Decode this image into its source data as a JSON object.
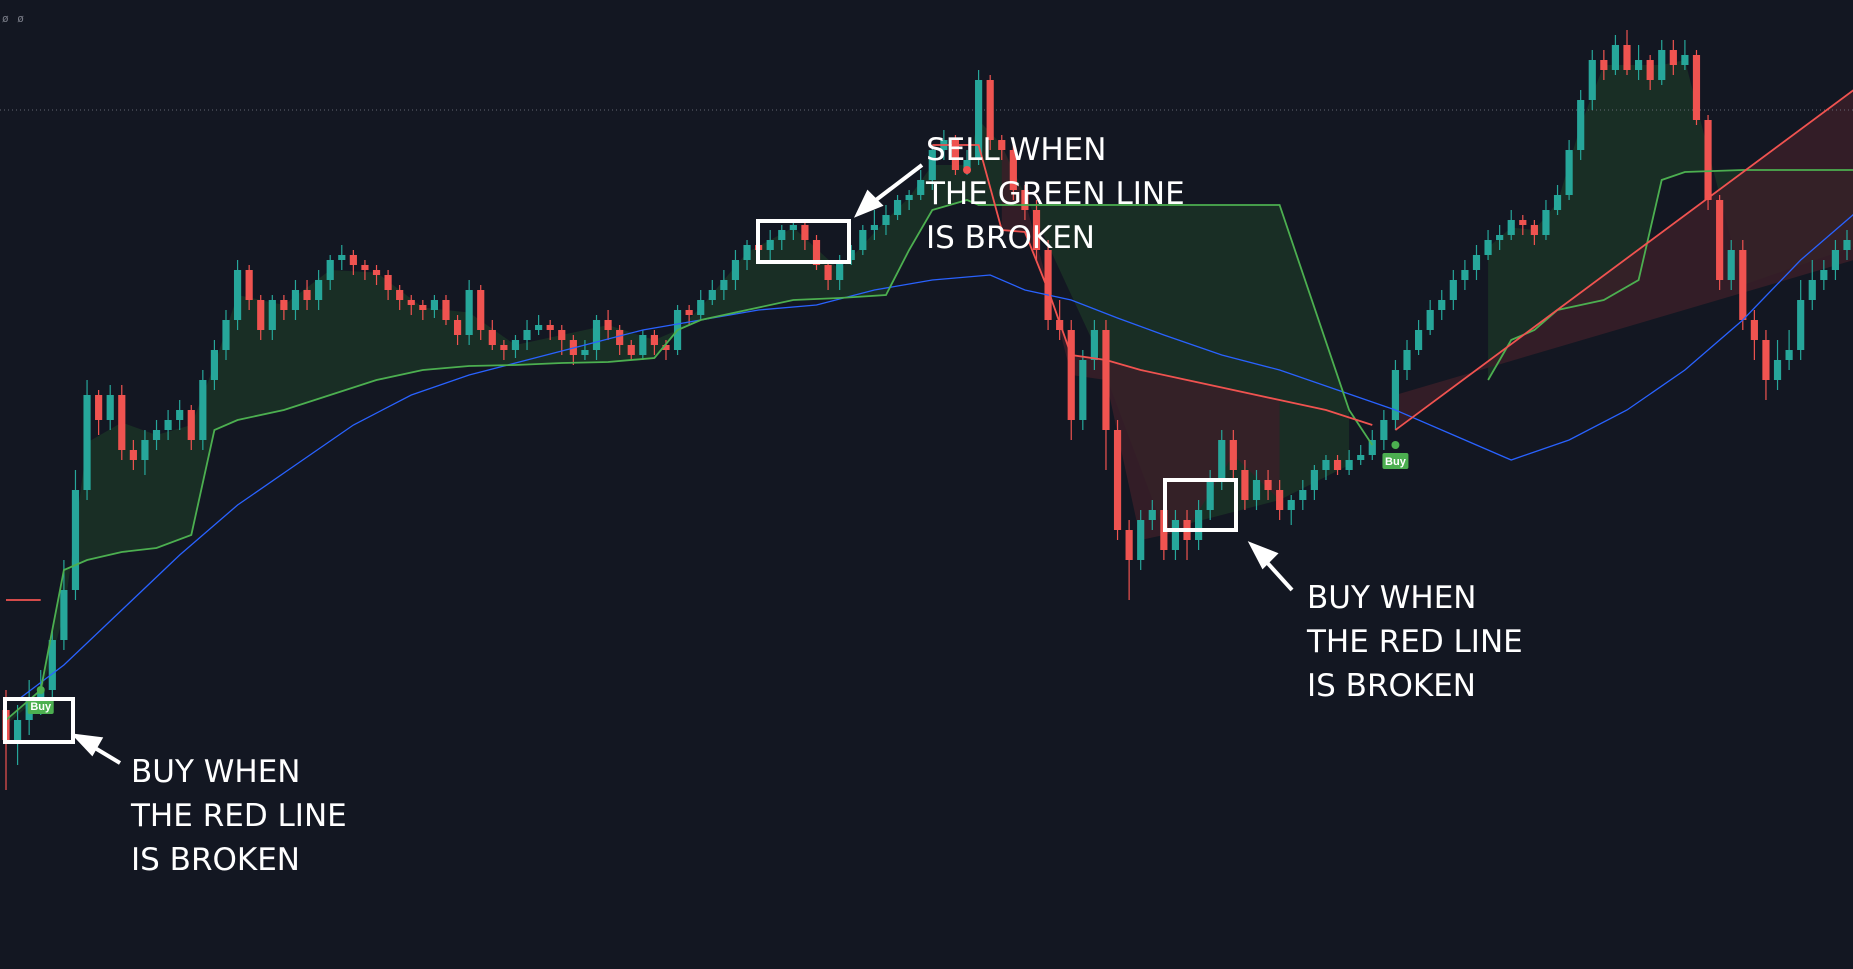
{
  "legend": {
    "values": "ø ø"
  },
  "colors": {
    "background": "#131722",
    "bull": "#26a69a",
    "bear": "#ef5350",
    "support_line": "#4caf50",
    "resistance_line": "#f05350",
    "moving_average": "#2962ff",
    "support_fill": "#1b3326",
    "resistance_fill": "#3a1f28",
    "annotation": "#ffffff",
    "signal_badge": "#4caf50"
  },
  "annotations": [
    {
      "id": "buy-left",
      "lines": [
        "BUY WHEN",
        "THE RED LINE",
        "IS BROKEN"
      ]
    },
    {
      "id": "sell-top",
      "lines": [
        "SELL WHEN",
        "THE GREEN LINE",
        "IS BROKEN"
      ]
    },
    {
      "id": "buy-right",
      "lines": [
        "BUY WHEN",
        "THE RED LINE",
        "IS BROKEN"
      ]
    }
  ],
  "signals": [
    {
      "label": "Buy",
      "bar": 3
    },
    {
      "label": "Buy",
      "bar": 120
    }
  ],
  "chart_data": {
    "type": "candlestick",
    "title": "",
    "grid": false,
    "ylim": [
      0,
      969
    ],
    "candles": [
      [
        710,
        740,
        790,
        690
      ],
      [
        740,
        720,
        765,
        705
      ],
      [
        720,
        700,
        735,
        680
      ],
      [
        700,
        690,
        715,
        670
      ],
      [
        690,
        640,
        700,
        630
      ],
      [
        640,
        590,
        650,
        560
      ],
      [
        590,
        490,
        600,
        470
      ],
      [
        490,
        395,
        500,
        380
      ],
      [
        395,
        420,
        435,
        390
      ],
      [
        420,
        395,
        430,
        385
      ],
      [
        395,
        450,
        460,
        385
      ],
      [
        450,
        460,
        470,
        440
      ],
      [
        460,
        440,
        475,
        430
      ],
      [
        440,
        430,
        450,
        420
      ],
      [
        430,
        420,
        440,
        410
      ],
      [
        420,
        410,
        430,
        400
      ],
      [
        410,
        440,
        450,
        405
      ],
      [
        440,
        380,
        450,
        370
      ],
      [
        380,
        350,
        390,
        340
      ],
      [
        350,
        320,
        360,
        310
      ],
      [
        320,
        270,
        330,
        260
      ],
      [
        270,
        300,
        310,
        265
      ],
      [
        300,
        330,
        340,
        295
      ],
      [
        330,
        300,
        340,
        295
      ],
      [
        300,
        310,
        320,
        295
      ],
      [
        310,
        290,
        320,
        280
      ],
      [
        290,
        300,
        310,
        280
      ],
      [
        300,
        280,
        310,
        270
      ],
      [
        280,
        260,
        290,
        255
      ],
      [
        260,
        255,
        270,
        245
      ],
      [
        255,
        265,
        275,
        250
      ],
      [
        265,
        270,
        280,
        260
      ],
      [
        270,
        275,
        285,
        265
      ],
      [
        275,
        290,
        300,
        270
      ],
      [
        290,
        300,
        310,
        285
      ],
      [
        300,
        305,
        315,
        295
      ],
      [
        305,
        310,
        320,
        300
      ],
      [
        310,
        300,
        318,
        295
      ],
      [
        300,
        320,
        325,
        295
      ],
      [
        320,
        335,
        345,
        315
      ],
      [
        335,
        290,
        345,
        280
      ],
      [
        290,
        330,
        340,
        285
      ],
      [
        330,
        345,
        350,
        320
      ],
      [
        345,
        350,
        360,
        340
      ],
      [
        350,
        340,
        358,
        335
      ],
      [
        340,
        330,
        350,
        320
      ],
      [
        330,
        325,
        335,
        315
      ],
      [
        325,
        330,
        340,
        320
      ],
      [
        330,
        340,
        355,
        325
      ],
      [
        340,
        355,
        365,
        335
      ],
      [
        355,
        350,
        360,
        340
      ],
      [
        350,
        320,
        360,
        315
      ],
      [
        320,
        330,
        340,
        310
      ],
      [
        330,
        345,
        355,
        325
      ],
      [
        345,
        355,
        360,
        340
      ],
      [
        355,
        335,
        360,
        330
      ],
      [
        335,
        345,
        355,
        330
      ],
      [
        345,
        350,
        360,
        340
      ],
      [
        350,
        310,
        355,
        305
      ],
      [
        310,
        315,
        325,
        305
      ],
      [
        315,
        300,
        320,
        290
      ],
      [
        300,
        290,
        305,
        280
      ],
      [
        290,
        280,
        300,
        270
      ],
      [
        280,
        260,
        290,
        250
      ],
      [
        260,
        245,
        270,
        240
      ],
      [
        245,
        250,
        255,
        235
      ],
      [
        250,
        240,
        260,
        230
      ],
      [
        240,
        230,
        250,
        225
      ],
      [
        230,
        225,
        240,
        220
      ],
      [
        225,
        240,
        250,
        220
      ],
      [
        240,
        265,
        270,
        235
      ],
      [
        265,
        280,
        290,
        260
      ],
      [
        280,
        260,
        290,
        255
      ],
      [
        260,
        250,
        265,
        245
      ],
      [
        250,
        230,
        255,
        225
      ],
      [
        230,
        225,
        240,
        210
      ],
      [
        225,
        215,
        235,
        205
      ],
      [
        215,
        200,
        220,
        195
      ],
      [
        200,
        195,
        210,
        190
      ],
      [
        195,
        180,
        200,
        170
      ],
      [
        180,
        150,
        190,
        145
      ],
      [
        150,
        140,
        160,
        130
      ],
      [
        140,
        170,
        175,
        135
      ],
      [
        170,
        160,
        175,
        150
      ],
      [
        160,
        80,
        165,
        70
      ],
      [
        80,
        140,
        150,
        75
      ],
      [
        140,
        150,
        160,
        135
      ],
      [
        150,
        190,
        200,
        145
      ],
      [
        190,
        210,
        220,
        185
      ],
      [
        210,
        250,
        260,
        200
      ],
      [
        250,
        320,
        330,
        240
      ],
      [
        320,
        330,
        340,
        300
      ],
      [
        330,
        420,
        440,
        320
      ],
      [
        420,
        360,
        430,
        350
      ],
      [
        360,
        330,
        370,
        320
      ],
      [
        330,
        430,
        470,
        320
      ],
      [
        430,
        530,
        540,
        420
      ],
      [
        530,
        560,
        600,
        520
      ],
      [
        560,
        520,
        570,
        510
      ],
      [
        520,
        510,
        530,
        500
      ],
      [
        510,
        550,
        560,
        500
      ],
      [
        550,
        520,
        560,
        510
      ],
      [
        520,
        540,
        560,
        510
      ],
      [
        540,
        510,
        550,
        500
      ],
      [
        510,
        480,
        520,
        470
      ],
      [
        480,
        440,
        490,
        430
      ],
      [
        440,
        470,
        480,
        430
      ],
      [
        470,
        500,
        510,
        460
      ],
      [
        500,
        480,
        510,
        470
      ],
      [
        480,
        490,
        500,
        470
      ],
      [
        490,
        510,
        520,
        480
      ],
      [
        510,
        500,
        525,
        495
      ],
      [
        500,
        490,
        510,
        480
      ],
      [
        490,
        470,
        500,
        465
      ],
      [
        470,
        460,
        480,
        455
      ],
      [
        460,
        470,
        475,
        455
      ],
      [
        470,
        460,
        475,
        450
      ],
      [
        460,
        455,
        465,
        445
      ],
      [
        455,
        440,
        460,
        430
      ],
      [
        440,
        420,
        450,
        410
      ],
      [
        420,
        370,
        430,
        360
      ],
      [
        370,
        350,
        380,
        340
      ],
      [
        350,
        330,
        355,
        320
      ],
      [
        330,
        310,
        335,
        300
      ],
      [
        310,
        300,
        320,
        290
      ],
      [
        300,
        280,
        310,
        270
      ],
      [
        280,
        270,
        290,
        260
      ],
      [
        270,
        255,
        280,
        245
      ],
      [
        255,
        240,
        260,
        230
      ],
      [
        240,
        235,
        250,
        225
      ],
      [
        235,
        220,
        240,
        210
      ],
      [
        220,
        225,
        235,
        215
      ],
      [
        225,
        235,
        245,
        220
      ],
      [
        235,
        210,
        240,
        200
      ],
      [
        210,
        195,
        215,
        185
      ],
      [
        195,
        150,
        200,
        140
      ],
      [
        150,
        100,
        160,
        90
      ],
      [
        100,
        60,
        110,
        50
      ],
      [
        60,
        70,
        80,
        50
      ],
      [
        70,
        45,
        75,
        35
      ],
      [
        45,
        70,
        75,
        30
      ],
      [
        70,
        60,
        80,
        45
      ],
      [
        60,
        80,
        90,
        55
      ],
      [
        80,
        50,
        85,
        40
      ],
      [
        50,
        65,
        75,
        40
      ],
      [
        65,
        55,
        70,
        40
      ],
      [
        55,
        120,
        125,
        50
      ],
      [
        120,
        200,
        210,
        115
      ],
      [
        200,
        280,
        290,
        195
      ],
      [
        280,
        250,
        290,
        240
      ],
      [
        250,
        320,
        330,
        240
      ],
      [
        320,
        340,
        360,
        310
      ],
      [
        340,
        380,
        400,
        330
      ],
      [
        380,
        360,
        390,
        340
      ],
      [
        360,
        350,
        370,
        330
      ],
      [
        350,
        300,
        360,
        280
      ],
      [
        300,
        280,
        310,
        260
      ],
      [
        280,
        270,
        290,
        260
      ],
      [
        270,
        250,
        280,
        240
      ],
      [
        250,
        240,
        260,
        230
      ]
    ],
    "support_line": [
      [
        0,
        720
      ],
      [
        3,
        690
      ],
      [
        5,
        570
      ],
      [
        7,
        560
      ],
      [
        10,
        552
      ],
      [
        13,
        548
      ],
      [
        16,
        535
      ],
      [
        18,
        430
      ],
      [
        20,
        420
      ],
      [
        24,
        410
      ],
      [
        28,
        395
      ],
      [
        32,
        380
      ],
      [
        36,
        370
      ],
      [
        40,
        366
      ],
      [
        44,
        365
      ],
      [
        48,
        363
      ],
      [
        52,
        362
      ],
      [
        56,
        358
      ],
      [
        58,
        330
      ],
      [
        60,
        320
      ],
      [
        64,
        310
      ],
      [
        68,
        300
      ],
      [
        72,
        298
      ],
      [
        76,
        295
      ],
      [
        78,
        250
      ],
      [
        80,
        210
      ],
      [
        83,
        200
      ],
      [
        84,
        205
      ],
      [
        86,
        205
      ],
      [
        94,
        205
      ],
      [
        100,
        205
      ],
      [
        110,
        205
      ],
      [
        116,
        410
      ],
      [
        118,
        445
      ],
      [
        122,
        440
      ],
      [
        124,
        410
      ],
      [
        126,
        395
      ],
      [
        128,
        380
      ],
      [
        130,
        340
      ],
      [
        132,
        330
      ],
      [
        134,
        310
      ],
      [
        136,
        305
      ],
      [
        138,
        300
      ],
      [
        141,
        280
      ],
      [
        143,
        180
      ],
      [
        145,
        172
      ],
      [
        150,
        170
      ],
      [
        160,
        170
      ],
      [
        163,
        162
      ],
      [
        164,
        162
      ]
    ],
    "resistance_line": [
      [
        0,
        600
      ],
      [
        3,
        600
      ],
      [
        80,
        145
      ],
      [
        84,
        145
      ],
      [
        86,
        230
      ],
      [
        88,
        232
      ],
      [
        90,
        290
      ],
      [
        92,
        355
      ],
      [
        95,
        360
      ],
      [
        98,
        370
      ],
      [
        102,
        380
      ],
      [
        106,
        390
      ],
      [
        110,
        400
      ],
      [
        114,
        410
      ],
      [
        118,
        425
      ],
      [
        120,
        430
      ],
      [
        164,
        52
      ],
      [
        166,
        85
      ],
      [
        168,
        215
      ],
      [
        175,
        215
      ],
      [
        180,
        215
      ],
      [
        184,
        225
      ]
    ],
    "moving_average": [
      [
        1,
        700
      ],
      [
        5,
        665
      ],
      [
        10,
        610
      ],
      [
        15,
        555
      ],
      [
        20,
        505
      ],
      [
        25,
        465
      ],
      [
        30,
        425
      ],
      [
        35,
        395
      ],
      [
        40,
        375
      ],
      [
        45,
        360
      ],
      [
        50,
        345
      ],
      [
        55,
        330
      ],
      [
        60,
        320
      ],
      [
        65,
        310
      ],
      [
        70,
        305
      ],
      [
        75,
        290
      ],
      [
        80,
        280
      ],
      [
        85,
        275
      ],
      [
        88,
        290
      ],
      [
        92,
        300
      ],
      [
        96,
        318
      ],
      [
        100,
        335
      ],
      [
        105,
        355
      ],
      [
        110,
        370
      ],
      [
        115,
        390
      ],
      [
        120,
        410
      ],
      [
        125,
        435
      ],
      [
        130,
        460
      ],
      [
        135,
        440
      ],
      [
        140,
        410
      ],
      [
        145,
        370
      ],
      [
        150,
        320
      ],
      [
        155,
        260
      ],
      [
        160,
        210
      ],
      [
        164,
        190
      ],
      [
        168,
        180
      ],
      [
        172,
        178
      ],
      [
        178,
        185
      ],
      [
        184,
        192
      ]
    ],
    "reference_level": 110
  }
}
